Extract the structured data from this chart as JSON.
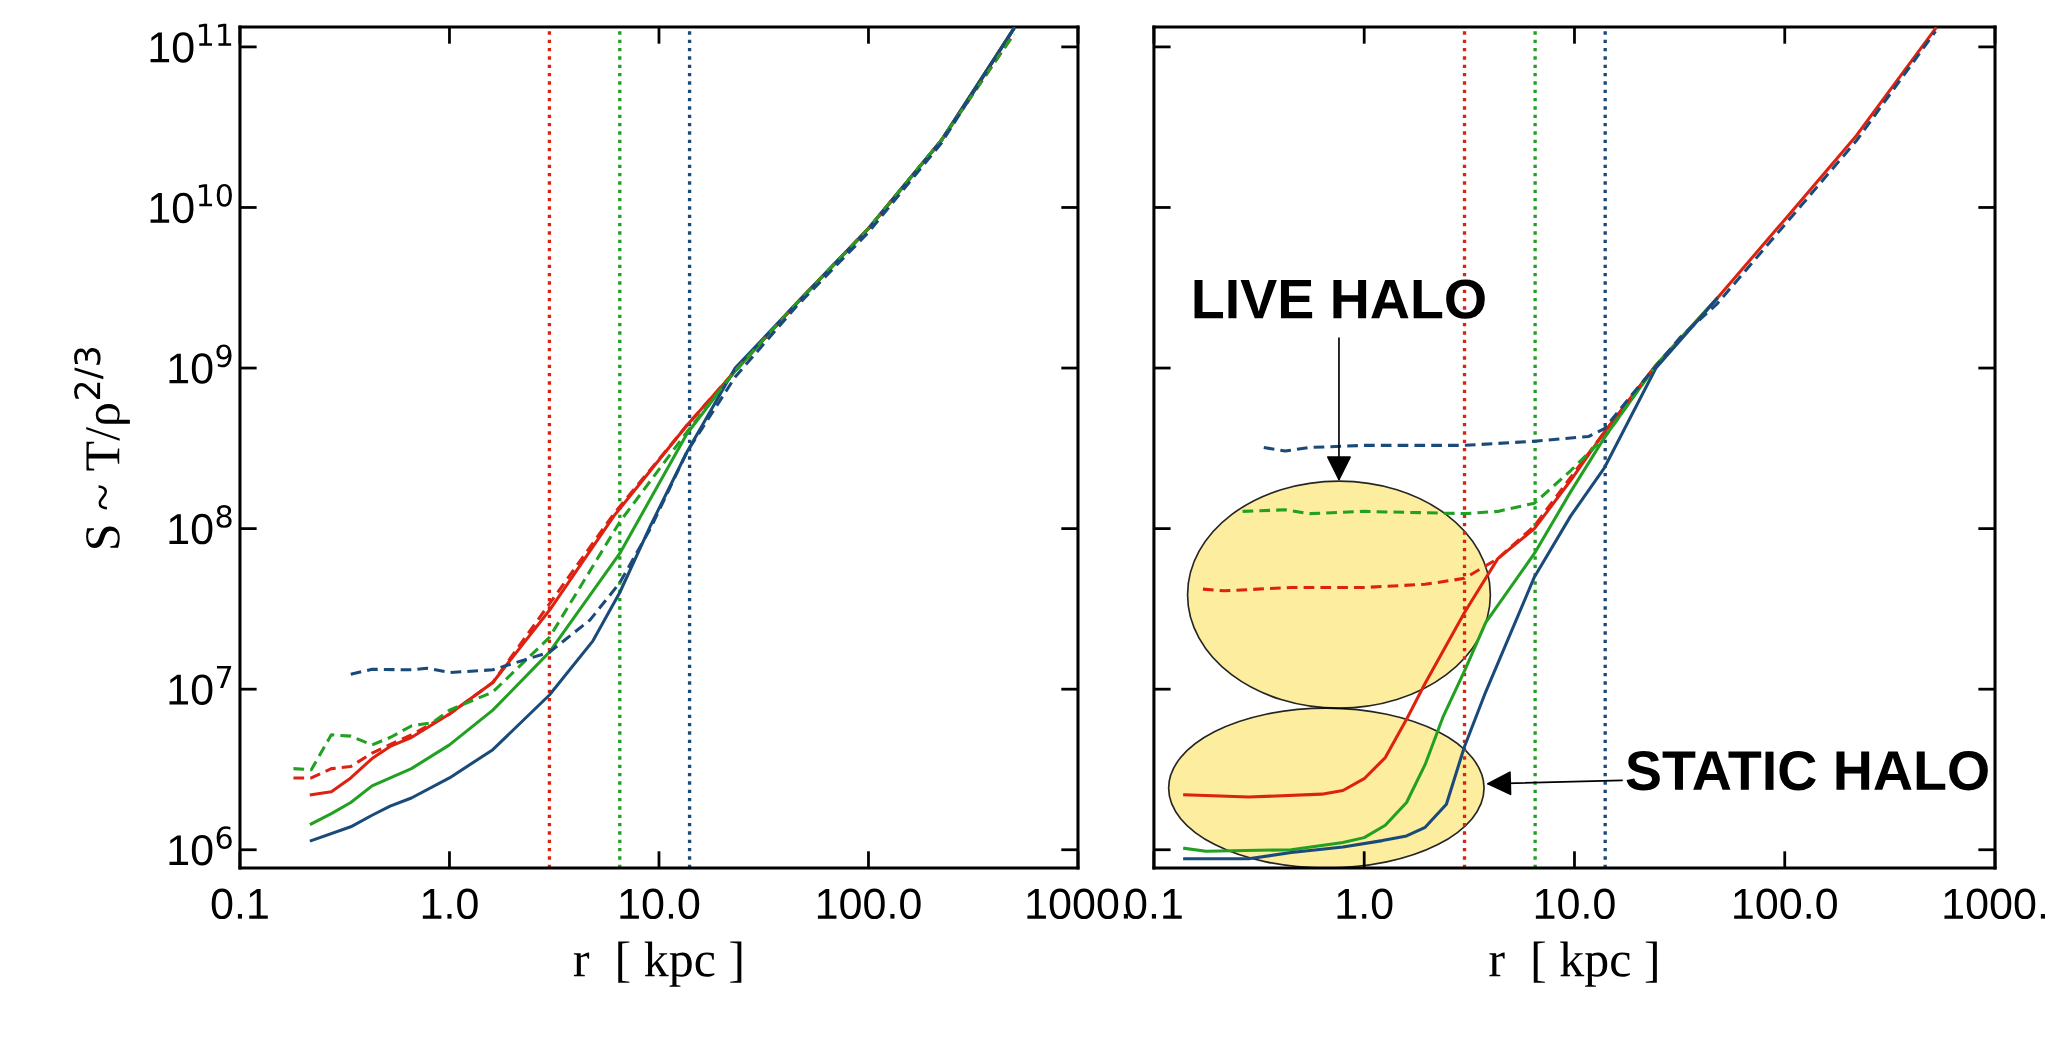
{
  "chart_data": [
    {
      "type": "line",
      "xlabel": "r  [ kpc ]",
      "ylabel": "S ~ T/ρ$^{2/3}$",
      "log": "xy",
      "grid": false,
      "legend": false,
      "xlim": [
        0.1,
        1000
      ],
      "xticks": [
        0.1,
        {
          "value": 1,
          "label": "1.0"
        },
        {
          "value": 10,
          "label": "10.0"
        },
        {
          "value": 100,
          "label": "100.0"
        },
        {
          "value": 1000,
          "label": "1000."
        }
      ],
      "ylim": [
        770000.0,
        133000000000.0
      ],
      "yticks": [
        {
          "value": 1000000.0,
          "label": "10$^{6}$"
        },
        {
          "value": 10000000.0,
          "label": "10$^{7}$"
        },
        {
          "value": 100000000.0,
          "label": "10$^{8}$"
        },
        {
          "value": 1000000000.0,
          "label": "10$^{9}$"
        },
        {
          "value": 10000000000.0,
          "label": "10$^{10}$"
        },
        {
          "value": 100000000000.0,
          "label": "10$^{11}$"
        }
      ],
      "ref_lines": [
        {
          "axis": "x",
          "value": 3.0,
          "color": "#dd2211",
          "line_style": "dotted"
        },
        {
          "axis": "x",
          "value": 6.5,
          "color": "#22a022",
          "line_style": "dotted"
        },
        {
          "axis": "x",
          "value": 14,
          "color": "#1a4a7a",
          "line_style": "dotted"
        }
      ],
      "series": [
        {
          "color": "#dd2211",
          "line_style": "solid",
          "x": [
            0.219,
            0.273,
            0.338,
            0.427,
            0.521,
            0.658,
            1.0,
            1.61,
            3.0,
            6.1,
            13.6,
            23.1,
            45,
            100,
            222,
            494
          ],
          "values": [
            2200000.0,
            2300000.0,
            2800000.0,
            3700000.0,
            4400000.0,
            5000000.0,
            7000000.0,
            11000000.0,
            31000000.0,
            120000000.0,
            440000000.0,
            960000000.0,
            2500000000.0,
            7400000000.0,
            26000000000.0,
            130000000000.0
          ]
        },
        {
          "color": "#22a022",
          "line_style": "solid",
          "x": [
            0.219,
            0.273,
            0.338,
            0.427,
            0.658,
            1.0,
            1.61,
            3.0,
            6.5,
            13.6,
            23.1,
            45,
            100,
            222,
            494
          ],
          "values": [
            1450000.0,
            1680000.0,
            1970000.0,
            2500000.0,
            3200000.0,
            4500000.0,
            7400000.0,
            17000000.0,
            70000000.0,
            390000000.0,
            960000000.0,
            2500000000.0,
            7400000000.0,
            26000000000.0,
            130000000000.0
          ]
        },
        {
          "color": "#1a4a7a",
          "line_style": "solid",
          "x": [
            0.219,
            0.338,
            0.427,
            0.521,
            0.658,
            1.0,
            1.61,
            3.0,
            4.84,
            6.5,
            9.1,
            13.6,
            23.1,
            45,
            100,
            222,
            494
          ],
          "values": [
            1140000.0,
            1390000.0,
            1640000.0,
            1870000.0,
            2100000.0,
            2800000.0,
            4200000.0,
            9200000.0,
            20000000.0,
            40000000.0,
            104000000.0,
            300000000.0,
            1000000000.0,
            2500000000.0,
            7400000000.0,
            26000000000.0,
            130000000000.0
          ]
        },
        {
          "color": "#dd2211",
          "line_style": "dashed",
          "x": [
            0.18,
            0.219,
            0.273,
            0.338,
            0.427,
            0.658,
            1.0,
            1.61,
            3.0,
            6.1,
            13.6,
            23.1,
            45,
            100,
            222,
            494
          ],
          "values": [
            2800000.0,
            2800000.0,
            3200000.0,
            3300000.0,
            4000000.0,
            5200000.0,
            7000000.0,
            11000000.0,
            34000000.0,
            124000000.0,
            440000000.0,
            960000000.0,
            2500000000.0,
            7400000000.0,
            26000000000.0,
            120000000000.0
          ]
        },
        {
          "color": "#22a022",
          "line_style": "dashed",
          "x": [
            0.18,
            0.219,
            0.273,
            0.338,
            0.427,
            0.521,
            0.658,
            0.83,
            1.0,
            1.61,
            3.0,
            6.5,
            13.6,
            23.1,
            45,
            100,
            222,
            494
          ],
          "values": [
            3200000.0,
            3150000.0,
            5200000.0,
            5100000.0,
            4500000.0,
            5000000.0,
            5900000.0,
            6200000.0,
            7400000.0,
            9600000.0,
            21000000.0,
            110000000.0,
            400000000.0,
            960000000.0,
            2500000000.0,
            7400000000.0,
            26000000000.0,
            120000000000.0
          ]
        },
        {
          "color": "#1a4a7a",
          "line_style": "dashed",
          "x": [
            0.338,
            0.427,
            0.658,
            0.78,
            1.0,
            1.61,
            3.0,
            4.69,
            6.5,
            9.1,
            13.6,
            23.1,
            45,
            100,
            222,
            494
          ],
          "values": [
            12400000.0,
            13300000.0,
            13200000.0,
            13500000.0,
            12700000.0,
            13200000.0,
            17000000.0,
            27000000.0,
            46000000.0,
            100000000.0,
            300000000.0,
            880000000.0,
            2400000000.0,
            7000000000.0,
            25000000000.0,
            130000000000.0
          ]
        }
      ]
    },
    {
      "type": "line",
      "xlabel": "r  [ kpc ]",
      "log": "xy",
      "grid": false,
      "legend": false,
      "tick_labels": "x",
      "xlim": [
        0.1,
        1000
      ],
      "xticks": [
        0.1,
        {
          "value": 1,
          "label": "1.0"
        },
        {
          "value": 10,
          "label": "10.0"
        },
        {
          "value": 100,
          "label": "100.0"
        },
        {
          "value": 1000,
          "label": "1000."
        }
      ],
      "ylim": [
        770000.0,
        133000000000.0
      ],
      "yticks": [
        1000000.0,
        10000000.0,
        100000000.0,
        1000000000.0,
        10000000000.0,
        100000000000.0
      ],
      "ref_lines": [
        {
          "axis": "x",
          "value": 3.0,
          "color": "#dd2211",
          "line_style": "dotted"
        },
        {
          "axis": "x",
          "value": 6.5,
          "color": "#22a022",
          "line_style": "dotted"
        },
        {
          "axis": "x",
          "value": 14,
          "color": "#1a4a7a",
          "line_style": "dotted"
        }
      ],
      "annotations": [
        "LIVE HALO",
        "STATIC HALO"
      ],
      "series": [
        {
          "color": "#dd2211",
          "line_style": "solid",
          "x": [
            0.14,
            0.282,
            0.628,
            0.792,
            1.0,
            1.26,
            1.59,
            1.95,
            3.0,
            4.32,
            6.45,
            9.6,
            13.9,
            24.4,
            47.5,
            100,
            219,
            521
          ],
          "values": [
            2200000.0,
            2130000.0,
            2220000.0,
            2340000.0,
            2770000.0,
            3750000.0,
            6500000.0,
            10900000.0,
            30000000.0,
            65000000.0,
            100000000.0,
            200000000.0,
            400000000.0,
            1040000000.0,
            2700000000.0,
            8400000000.0,
            28000000000.0,
            130000000000.0
          ]
        },
        {
          "color": "#22a022",
          "line_style": "solid",
          "x": [
            0.14,
            0.177,
            0.45,
            0.792,
            1.0,
            1.26,
            1.59,
            1.95,
            2.38,
            3.0,
            3.78,
            6.45,
            9.6,
            13.9,
            24.4,
            47.5
          ],
          "values": [
            1020000.0,
            980000.0,
            1000000.0,
            1110000.0,
            1190000.0,
            1420000.0,
            1970000.0,
            3400000.0,
            6800000.0,
            13000000.0,
            26000000.0,
            70000000.0,
            170000000.0,
            370000000.0,
            1040000000.0,
            2700000000.0
          ]
        },
        {
          "color": "#1a4a7a",
          "line_style": "solid",
          "x": [
            0.14,
            0.282,
            0.45,
            0.792,
            1.22,
            1.59,
            1.95,
            2.46,
            3.0,
            3.78,
            6.45,
            9.6,
            13.9,
            24.4,
            47.5
          ],
          "values": [
            880000.0,
            880000.0,
            960000.0,
            1040000.0,
            1140000.0,
            1220000.0,
            1380000.0,
            1920000.0,
            4400000.0,
            9600000.0,
            50000000.0,
            120000000.0,
            240000000.0,
            1000000000.0,
            2700000000.0
          ]
        },
        {
          "color": "#dd2211",
          "line_style": "dashed",
          "x": [
            0.171,
            0.216,
            0.45,
            1.0,
            1.95,
            3.0,
            4.32,
            6.45,
            13.9,
            24.4
          ],
          "values": [
            42000000.0,
            41000000.0,
            43000000.0,
            43000000.0,
            45000000.0,
            49000000.0,
            65000000.0,
            104000000.0,
            400000000.0,
            1040000000.0
          ]
        },
        {
          "color": "#22a022",
          "line_style": "dashed",
          "x": [
            0.264,
            0.421,
            0.55,
            1.0,
            3.0,
            4.32,
            6.45,
            9.6,
            13.9,
            24.4
          ],
          "values": [
            128000000.0,
            131000000.0,
            124000000.0,
            128000000.0,
            124000000.0,
            128000000.0,
            144000000.0,
            230000000.0,
            370000000.0,
            1040000000.0
          ]
        },
        {
          "color": "#1a4a7a",
          "line_style": "dashed",
          "x": [
            0.333,
            0.421,
            0.55,
            1.0,
            3.0,
            6.45,
            11.7,
            13.9,
            18.7,
            31.8,
            47.5,
            100,
            219,
            521
          ],
          "values": [
            320000000.0,
            304000000.0,
            320000000.0,
            330000000.0,
            330000000.0,
            350000000.0,
            375000000.0,
            420000000.0,
            680000000.0,
            1550000000.0,
            2500000000.0,
            7800000000.0,
            26000000000.0,
            125000000000.0
          ]
        }
      ]
    }
  ]
}
